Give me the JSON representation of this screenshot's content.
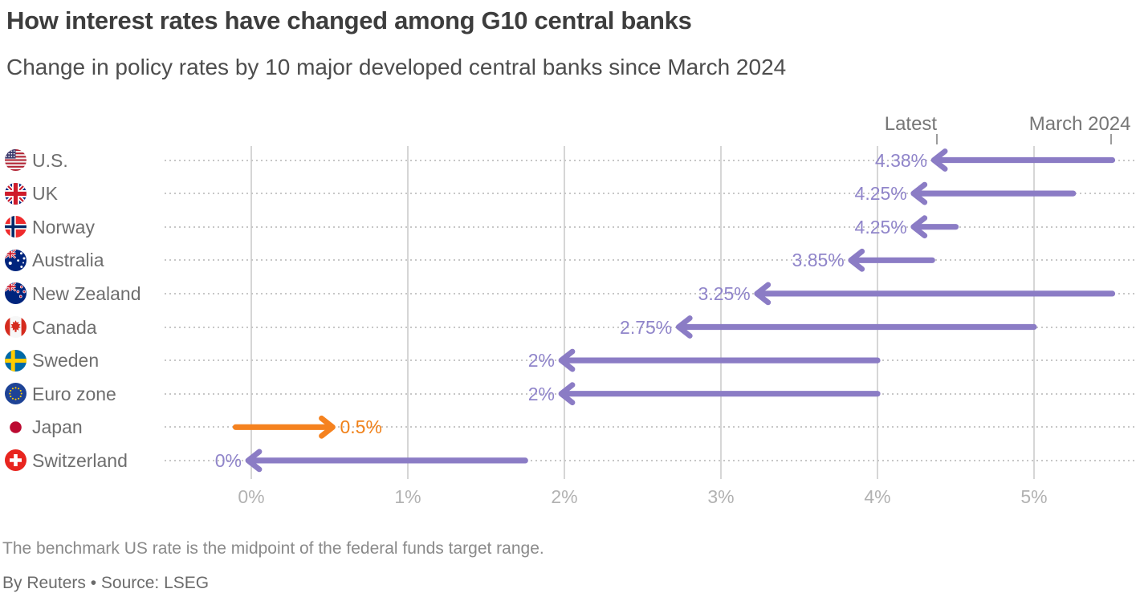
{
  "header": {
    "title": "How interest rates have changed among G10 central banks",
    "subtitle": "Change in policy rates by 10 major developed central banks since March 2024"
  },
  "chart_data": {
    "type": "arrow-range",
    "title": "How interest rates have changed among G10 central banks",
    "column_labels": {
      "latest": "Latest",
      "start": "March 2024"
    },
    "column_marker_values": {
      "latest": 4.38,
      "start": 5.5
    },
    "x_axis": {
      "tick_labels": [
        "0%",
        "1%",
        "2%",
        "3%",
        "4%",
        "5%"
      ],
      "tick_values": [
        0,
        1,
        2,
        3,
        4,
        5
      ],
      "min": -0.55,
      "max": 5.65,
      "grid": true,
      "unit": "percent"
    },
    "rows": [
      {
        "country": "U.S.",
        "flag_icon": "us-flag-icon",
        "latest": 4.38,
        "latest_label": "4.38%",
        "march_2024": 5.5,
        "direction": "cut"
      },
      {
        "country": "UK",
        "flag_icon": "uk-flag-icon",
        "latest": 4.25,
        "latest_label": "4.25%",
        "march_2024": 5.25,
        "direction": "cut"
      },
      {
        "country": "Norway",
        "flag_icon": "norway-flag-icon",
        "latest": 4.25,
        "latest_label": "4.25%",
        "march_2024": 4.5,
        "direction": "cut"
      },
      {
        "country": "Australia",
        "flag_icon": "australia-flag-icon",
        "latest": 3.85,
        "latest_label": "3.85%",
        "march_2024": 4.35,
        "direction": "cut"
      },
      {
        "country": "New Zealand",
        "flag_icon": "new-zealand-flag-icon",
        "latest": 3.25,
        "latest_label": "3.25%",
        "march_2024": 5.5,
        "direction": "cut"
      },
      {
        "country": "Canada",
        "flag_icon": "canada-flag-icon",
        "latest": 2.75,
        "latest_label": "2.75%",
        "march_2024": 5.0,
        "direction": "cut"
      },
      {
        "country": "Sweden",
        "flag_icon": "sweden-flag-icon",
        "latest": 2,
        "latest_label": "2%",
        "march_2024": 4.0,
        "direction": "cut"
      },
      {
        "country": "Euro zone",
        "flag_icon": "euro-zone-flag-icon",
        "latest": 2,
        "latest_label": "2%",
        "march_2024": 4.0,
        "direction": "cut"
      },
      {
        "country": "Japan",
        "flag_icon": "japan-flag-icon",
        "latest": 0.5,
        "latest_label": "0.5%",
        "march_2024": -0.1,
        "direction": "hike"
      },
      {
        "country": "Switzerland",
        "flag_icon": "switzerland-flag-icon",
        "latest": 0,
        "latest_label": "0%",
        "march_2024": 1.75,
        "direction": "cut"
      }
    ],
    "colors": {
      "cut_arrow": "#8b7cc5",
      "hike_arrow": "#f5821f",
      "cut_value_label": "#9085ca",
      "hike_value_label": "#f08119"
    },
    "legend_position": "top-right"
  },
  "footer": {
    "note": "The benchmark US rate is the midpoint of the federal funds target range.",
    "byline": "By Reuters • Source: LSEG"
  }
}
